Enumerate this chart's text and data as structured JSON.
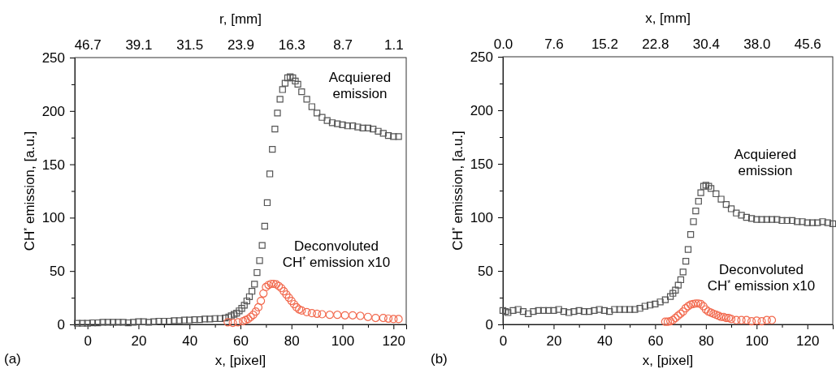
{
  "chart_data": [
    {
      "type": "scatter",
      "xlabel": "x, [pixel]",
      "ylabel": "CH$^{*}$ emission, [a.u.]",
      "x2label": "r, [mm]",
      "xlim": [
        -5,
        125
      ],
      "xticks": [
        0,
        {
          "value": 10,
          "label": null
        },
        20,
        {
          "value": 30,
          "label": null
        },
        40,
        {
          "value": 50,
          "label": null
        },
        60,
        {
          "value": 70,
          "label": null
        },
        80,
        {
          "value": 90,
          "label": null
        },
        100,
        {
          "value": 110,
          "label": null
        },
        120
      ],
      "x2lim": [
        48.6,
        -0.8
      ],
      "x2ticks": [
        46.7,
        39.1,
        31.5,
        23.9,
        16.3,
        8.7,
        1.1
      ],
      "ylim": [
        0,
        250
      ],
      "yticks": [
        0,
        {
          "value": 25,
          "label": null
        },
        50,
        {
          "value": 75,
          "label": null
        },
        100,
        {
          "value": 125,
          "label": null
        },
        150,
        {
          "value": 175,
          "label": null
        },
        200,
        {
          "value": 225,
          "label": null
        },
        250
      ],
      "grid": false,
      "series": [
        {
          "name": "Acquiered emission",
          "color": "#555555",
          "marker": "square",
          "x": [
            -4,
            -2,
            0,
            2,
            4,
            6,
            8,
            10,
            12,
            14,
            16,
            18,
            20,
            22,
            24,
            26,
            28,
            30,
            32,
            34,
            36,
            38,
            40,
            42,
            44,
            46,
            48,
            50,
            52,
            54,
            55.4,
            56.4,
            57.5,
            58.5,
            59.5,
            60.5,
            61.5,
            62.5,
            63.5,
            64.5,
            65.5,
            66.5,
            67.5,
            68.5,
            69.5,
            70.5,
            71.5,
            72.5,
            73.5,
            74.5,
            75.5,
            76.5,
            77.5,
            78.5,
            79.5,
            80.5,
            81.5,
            82.5,
            84,
            86,
            88,
            90,
            92,
            94,
            96,
            98,
            100,
            102,
            104,
            106,
            108,
            110,
            112,
            114,
            116,
            118,
            120,
            122
          ],
          "values": [
            1,
            1,
            1,
            1.5,
            1.5,
            2,
            2,
            2,
            2,
            2,
            1.5,
            2,
            2.5,
            2.5,
            2,
            2.5,
            3,
            3,
            3,
            3.5,
            3.5,
            4,
            4,
            4.5,
            4.5,
            5,
            5,
            5.5,
            5.5,
            6,
            7,
            8,
            9.4,
            10.6,
            12.7,
            15,
            18,
            22,
            26,
            31,
            37.7,
            48.6,
            59.8,
            74,
            92,
            114,
            141,
            164,
            183,
            198,
            211,
            220,
            226,
            231,
            232,
            231,
            228,
            225,
            218,
            211,
            204,
            198,
            194,
            191,
            189,
            188,
            187,
            186,
            186,
            185,
            184,
            184,
            183,
            181,
            179,
            177,
            176,
            176
          ]
        },
        {
          "name": "Deconvoluted CH$^{*}$ emission x10",
          "color": "#f26a4f",
          "marker": "circle",
          "x": [
            55,
            57,
            59,
            61,
            62,
            63,
            64,
            65,
            66,
            67,
            68,
            69,
            70,
            71,
            72,
            73,
            74,
            75,
            76,
            77,
            78,
            79,
            80,
            81,
            82,
            83,
            84,
            86,
            88,
            90,
            92,
            95,
            98,
            101,
            104,
            107,
            110,
            113,
            116,
            118,
            120,
            122
          ],
          "values": [
            2,
            1.5,
            2,
            3,
            4,
            5,
            7,
            9,
            12,
            16,
            22,
            29,
            35,
            37,
            38,
            38,
            37.5,
            36,
            34,
            31,
            28,
            25,
            22,
            19,
            16,
            14,
            13,
            11.5,
            10.5,
            10,
            9.5,
            9,
            9,
            8.5,
            8.5,
            8,
            7,
            6,
            6,
            5.5,
            5,
            5
          ]
        }
      ],
      "annotations": [
        "(a)"
      ]
    },
    {
      "type": "scatter",
      "xlabel": "x, [pixel]",
      "ylabel": "CH$^{*}$ emission, [a.u.]",
      "x2label": "x, [mm]",
      "xlim": [
        0,
        130
      ],
      "xticks": [
        0,
        {
          "value": 10,
          "label": null
        },
        20,
        {
          "value": 30,
          "label": null
        },
        40,
        {
          "value": 50,
          "label": null
        },
        60,
        {
          "value": 70,
          "label": null
        },
        80,
        {
          "value": 90,
          "label": null
        },
        100,
        {
          "value": 110,
          "label": null
        },
        120
      ],
      "x2lim": [
        0,
        49.4
      ],
      "x2ticks": [
        {
          "value": 0,
          "label": "0.0"
        },
        7.6,
        15.2,
        22.8,
        30.4,
        {
          "value": 38,
          "label": "38.0"
        },
        45.6
      ],
      "ylim": [
        0,
        250
      ],
      "yticks": [
        0,
        {
          "value": 25,
          "label": null
        },
        50,
        {
          "value": 75,
          "label": null
        },
        100,
        {
          "value": 125,
          "label": null
        },
        150,
        {
          "value": 175,
          "label": null
        },
        200,
        {
          "value": 225,
          "label": null
        },
        250
      ],
      "grid": false,
      "series": [
        {
          "name": "Acquiered emission",
          "color": "#555555",
          "marker": "square",
          "x": [
            0,
            1,
            2,
            4,
            6,
            8,
            10,
            12,
            14,
            16,
            18,
            20,
            22,
            24,
            26,
            28,
            30,
            32,
            34,
            36,
            38,
            40,
            42,
            44,
            46,
            48,
            50,
            52,
            54,
            56,
            58,
            60,
            62,
            64,
            66,
            67,
            68,
            69.1,
            70.1,
            71,
            72.1,
            73,
            74,
            75.1,
            76,
            77.1,
            78,
            79.1,
            80,
            81.1,
            82,
            84,
            86,
            88,
            90,
            92,
            94,
            96,
            98,
            100,
            102,
            104,
            106,
            108,
            110,
            112,
            114,
            116,
            118,
            120,
            122,
            124,
            126,
            128,
            130
          ],
          "values": [
            13,
            12,
            11,
            13,
            14,
            12,
            10,
            12,
            13,
            13,
            13,
            13,
            14,
            12,
            11,
            12,
            13,
            12,
            12,
            13,
            14,
            13,
            12,
            14,
            14,
            14,
            14,
            14,
            15,
            17,
            18,
            19,
            21,
            23,
            26,
            29,
            32,
            36.6,
            41.7,
            49,
            59,
            70,
            84,
            96,
            106,
            115,
            123,
            129,
            130,
            129,
            127,
            122,
            117,
            112,
            108,
            104,
            102,
            100,
            99,
            98,
            98,
            98,
            98,
            98,
            97,
            97,
            97,
            96,
            96,
            95,
            95,
            95,
            96,
            95,
            94
          ]
        },
        {
          "name": "Deconvoluted CH$^{*}$ emission x10",
          "color": "#f26a4f",
          "marker": "circle",
          "x": [
            64,
            65,
            66,
            67,
            68,
            69,
            70,
            71,
            72,
            73,
            74,
            75,
            76,
            77,
            78,
            79,
            80,
            81,
            82,
            83,
            84,
            85,
            86,
            87,
            88,
            89,
            90,
            92,
            94,
            96,
            98,
            100,
            102,
            104,
            106
          ],
          "values": [
            2.5,
            2.5,
            3,
            4,
            6,
            8,
            10,
            12,
            15,
            17,
            18.5,
            19,
            19.5,
            19.5,
            19,
            17,
            14,
            12,
            11,
            10,
            9,
            8,
            7,
            7,
            6,
            6,
            5,
            4,
            4,
            4,
            3,
            3.5,
            3,
            4,
            4
          ]
        }
      ],
      "annotations": [
        "(b)"
      ]
    }
  ]
}
